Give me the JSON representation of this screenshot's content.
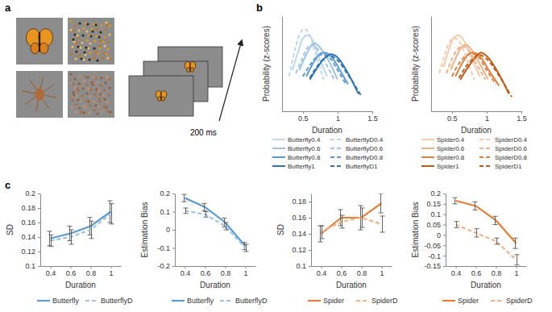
{
  "panel_labels": [
    "a",
    "b",
    "c"
  ],
  "panel_a": {
    "annotation": "200 ms"
  },
  "chart_data": [
    {
      "type": "line",
      "x_label": "Duration",
      "y_label": "Probability (z-scores)",
      "xlim": [
        0.2,
        1.5
      ],
      "xticks": [
        0.5,
        1,
        1.5
      ],
      "ylim": [
        0,
        3
      ],
      "tick_labels": "x",
      "series": [
        {
          "name": "Butterfly0.4",
          "color": "#bdd7ee",
          "line_style": "solid",
          "x": [
            0.35,
            0.42,
            0.5,
            0.57,
            0.65,
            0.75,
            0.85
          ],
          "values": [
            1.3,
            1.8,
            2.3,
            2.4,
            2.2,
            1.6,
            1.1
          ]
        },
        {
          "name": "ButterflyD0.4",
          "color": "#bdd7ee",
          "line_style": "dashed",
          "x": [
            0.3,
            0.37,
            0.45,
            0.52,
            0.6,
            0.7,
            0.8
          ],
          "values": [
            1.1,
            1.8,
            2.4,
            2.6,
            2.4,
            1.7,
            1.0
          ]
        },
        {
          "name": "Butterfly0.6",
          "color": "#9dc3e6",
          "line_style": "solid",
          "x": [
            0.45,
            0.53,
            0.6,
            0.67,
            0.75,
            0.87,
            1.0
          ],
          "values": [
            1.3,
            1.7,
            2.0,
            2.15,
            2.0,
            1.6,
            1.0
          ]
        },
        {
          "name": "ButterflyD0.6",
          "color": "#9dc3e6",
          "line_style": "dashed",
          "x": [
            0.4,
            0.48,
            0.55,
            0.62,
            0.7,
            0.82,
            0.95
          ],
          "values": [
            1.2,
            1.6,
            1.95,
            2.1,
            2.0,
            1.55,
            1.0
          ]
        },
        {
          "name": "Butterfly0.8",
          "color": "#5b9bd5",
          "line_style": "solid",
          "x": [
            0.55,
            0.63,
            0.72,
            0.8,
            0.9,
            1.02,
            1.15
          ],
          "values": [
            1.1,
            1.45,
            1.75,
            1.85,
            1.75,
            1.35,
            0.85
          ]
        },
        {
          "name": "ButterflyD0.8",
          "color": "#5b9bd5",
          "line_style": "dashed",
          "x": [
            0.5,
            0.6,
            0.7,
            0.78,
            0.88,
            1.0,
            1.12
          ],
          "values": [
            1.1,
            1.45,
            1.72,
            1.8,
            1.7,
            1.3,
            0.85
          ]
        },
        {
          "name": "Butterfly1",
          "color": "#2e75b6",
          "line_style": "solid",
          "x": [
            0.6,
            0.7,
            0.8,
            0.9,
            1.0,
            1.15,
            1.3
          ],
          "values": [
            1.0,
            1.35,
            1.65,
            1.8,
            1.7,
            1.2,
            0.55
          ]
        },
        {
          "name": "ButterflyD1",
          "color": "#2e75b6",
          "line_style": "dashed",
          "x": [
            0.6,
            0.7,
            0.8,
            0.88,
            0.98,
            1.15,
            1.35
          ],
          "values": [
            1.05,
            1.4,
            1.65,
            1.75,
            1.65,
            1.15,
            0.45
          ]
        }
      ]
    },
    {
      "type": "line",
      "x_label": "Duration",
      "y_label": "Probability (z-scores)",
      "xlim": [
        0.2,
        1.5
      ],
      "xticks": [
        0.5,
        1,
        1.5
      ],
      "ylim": [
        0,
        3
      ],
      "tick_labels": "x",
      "series": [
        {
          "name": "Spider0.4",
          "color": "#f8cbad",
          "line_style": "solid",
          "x": [
            0.38,
            0.45,
            0.52,
            0.6,
            0.68,
            0.78,
            0.9
          ],
          "values": [
            1.4,
            1.9,
            2.3,
            2.4,
            2.2,
            1.7,
            1.1
          ]
        },
        {
          "name": "SpiderD0.4",
          "color": "#f8cbad",
          "line_style": "dashed",
          "x": [
            0.32,
            0.4,
            0.47,
            0.54,
            0.62,
            0.72,
            0.82
          ],
          "values": [
            1.2,
            1.8,
            2.2,
            2.3,
            2.15,
            1.6,
            1.0
          ]
        },
        {
          "name": "Spider0.6",
          "color": "#f4b183",
          "line_style": "solid",
          "x": [
            0.48,
            0.56,
            0.63,
            0.7,
            0.78,
            0.9,
            1.02
          ],
          "values": [
            1.3,
            1.7,
            2.0,
            2.1,
            1.95,
            1.5,
            1.0
          ]
        },
        {
          "name": "SpiderD0.6",
          "color": "#f4b183",
          "line_style": "dashed",
          "x": [
            0.42,
            0.5,
            0.58,
            0.65,
            0.73,
            0.85,
            0.98
          ],
          "values": [
            1.2,
            1.65,
            1.95,
            2.05,
            1.95,
            1.5,
            1.0
          ]
        },
        {
          "name": "Spider0.8",
          "color": "#e0823f",
          "line_style": "solid",
          "x": [
            0.55,
            0.63,
            0.72,
            0.8,
            0.9,
            1.03,
            1.18
          ],
          "values": [
            1.1,
            1.45,
            1.75,
            1.85,
            1.75,
            1.3,
            0.8
          ]
        },
        {
          "name": "SpiderD0.8",
          "color": "#e0823f",
          "line_style": "dashed",
          "x": [
            0.5,
            0.6,
            0.7,
            0.78,
            0.88,
            1.0,
            1.13
          ],
          "values": [
            1.1,
            1.5,
            1.75,
            1.82,
            1.72,
            1.3,
            0.85
          ]
        },
        {
          "name": "Spider1",
          "color": "#c55a11",
          "line_style": "solid",
          "x": [
            0.62,
            0.72,
            0.82,
            0.92,
            1.02,
            1.17,
            1.32
          ],
          "values": [
            1.0,
            1.35,
            1.65,
            1.85,
            1.7,
            1.2,
            0.55
          ]
        },
        {
          "name": "SpiderD1",
          "color": "#c55a11",
          "line_style": "dashed",
          "x": [
            0.6,
            0.7,
            0.8,
            0.9,
            1.0,
            1.17,
            1.36
          ],
          "values": [
            1.05,
            1.4,
            1.65,
            1.78,
            1.65,
            1.15,
            0.45
          ]
        }
      ]
    },
    {
      "type": "line",
      "x_label": "Duration",
      "y_label": "SD",
      "categories": [
        "0.4",
        "0.6",
        "0.8",
        "1"
      ],
      "ylim": [
        0.1,
        0.2
      ],
      "yticks": [
        0.1,
        0.12,
        0.14,
        0.16,
        0.18,
        0.2
      ],
      "series": [
        {
          "name": "Butterfly",
          "color": "#5b9bd5",
          "line_style": "solid",
          "values": [
            0.138,
            0.145,
            0.155,
            0.175
          ],
          "errors": [
            0.01,
            0.01,
            0.012,
            0.015
          ]
        },
        {
          "name": "ButterflyD",
          "color": "#9dc3e6",
          "line_style": "dashed",
          "values": [
            0.135,
            0.14,
            0.15,
            0.172
          ],
          "errors": [
            0.008,
            0.01,
            0.012,
            0.014
          ]
        }
      ]
    },
    {
      "type": "line",
      "x_label": "Duration",
      "y_label": "Estimation Bias",
      "categories": [
        "0.4",
        "0.6",
        "0.8",
        "1"
      ],
      "ylim": [
        -0.2,
        0.2
      ],
      "yticks": [
        -0.2,
        -0.1,
        0,
        0.1,
        0.2
      ],
      "series": [
        {
          "name": "Butterfly",
          "color": "#5b9bd5",
          "line_style": "solid",
          "values": [
            0.175,
            0.125,
            0.04,
            -0.09
          ],
          "errors": [
            0.02,
            0.02,
            0.025,
            0.02
          ]
        },
        {
          "name": "ButterflyD",
          "color": "#9dc3e6",
          "line_style": "dashed",
          "values": [
            0.105,
            0.085,
            0.02,
            -0.1
          ],
          "errors": [
            0.015,
            0.015,
            0.02,
            0.02
          ]
        }
      ]
    },
    {
      "type": "line",
      "x_label": "Duration",
      "y_label": "SD",
      "categories": [
        "0.4",
        "0.6",
        "0.8",
        "1"
      ],
      "ylim": [
        0.1,
        0.19
      ],
      "yticks": [
        0.1,
        0.12,
        0.14,
        0.16,
        0.18
      ],
      "series": [
        {
          "name": "Spider",
          "color": "#ed7d31",
          "line_style": "solid",
          "values": [
            0.14,
            0.16,
            0.16,
            0.178
          ],
          "errors": [
            0.01,
            0.01,
            0.015,
            0.012
          ]
        },
        {
          "name": "SpiderD",
          "color": "#f4b183",
          "line_style": "dashed",
          "values": [
            0.142,
            0.155,
            0.16,
            0.152
          ],
          "errors": [
            0.008,
            0.008,
            0.012,
            0.01
          ]
        }
      ]
    },
    {
      "type": "line",
      "x_label": "Duration",
      "y_label": "Estimation Bias",
      "categories": [
        "0.4",
        "0.6",
        "0.8",
        "1"
      ],
      "ylim": [
        -0.15,
        0.2
      ],
      "yticks": [
        -0.15,
        -0.1,
        -0.05,
        0,
        0.05,
        0.1,
        0.15,
        0.2
      ],
      "series": [
        {
          "name": "Spider",
          "color": "#ed7d31",
          "line_style": "solid",
          "values": [
            0.165,
            0.14,
            0.07,
            -0.04
          ],
          "errors": [
            0.015,
            0.02,
            0.02,
            0.025
          ]
        },
        {
          "name": "SpiderD",
          "color": "#f4b183",
          "line_style": "dashed",
          "values": [
            0.05,
            0.01,
            -0.03,
            -0.12
          ],
          "errors": [
            0.015,
            0.02,
            0.015,
            0.025
          ]
        }
      ]
    }
  ]
}
